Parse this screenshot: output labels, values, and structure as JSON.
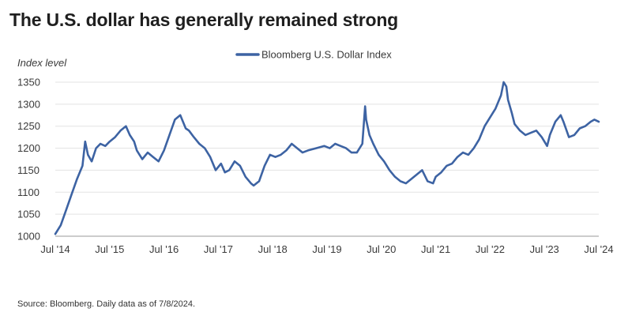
{
  "header": {
    "title": "The U.S. dollar has generally remained strong"
  },
  "footer": {
    "source": "Source: Bloomberg. Daily data as of 7/8/2024."
  },
  "colors": {
    "line": "#3d63a3",
    "grid": "#e3e3e3",
    "axis": "#9a9a9a"
  },
  "chart_data": {
    "type": "line",
    "title": "The U.S. dollar has generally remained strong",
    "ylabel": "Index level",
    "xlabel": "",
    "ylim": [
      1000,
      1350
    ],
    "xlim": [
      2014.5,
      2024.5
    ],
    "grid": true,
    "legend": {
      "position": "top-center",
      "entries": [
        "Bloomberg U.S. Dollar Index"
      ]
    },
    "yticks": [
      {
        "value": 1000,
        "label": "1000"
      },
      {
        "value": 1050,
        "label": "1050"
      },
      {
        "value": 1100,
        "label": "1100"
      },
      {
        "value": 1150,
        "label": "1150"
      },
      {
        "value": 1200,
        "label": "1200"
      },
      {
        "value": 1250,
        "label": "1250"
      },
      {
        "value": 1300,
        "label": "1300"
      },
      {
        "value": 1350,
        "label": "1350"
      }
    ],
    "xticks": [
      {
        "value": 2014.5,
        "label": "Jul '14"
      },
      {
        "value": 2015.5,
        "label": "Jul '15"
      },
      {
        "value": 2016.5,
        "label": "Jul '16"
      },
      {
        "value": 2017.5,
        "label": "Jul '17"
      },
      {
        "value": 2018.5,
        "label": "Jul '18"
      },
      {
        "value": 2019.5,
        "label": "Jul '19"
      },
      {
        "value": 2020.5,
        "label": "Jul '20"
      },
      {
        "value": 2021.5,
        "label": "Jul '21"
      },
      {
        "value": 2022.5,
        "label": "Jul '22"
      },
      {
        "value": 2023.5,
        "label": "Jul '23"
      },
      {
        "value": 2024.5,
        "label": "Jul '24"
      }
    ],
    "series": [
      {
        "name": "Bloomberg U.S. Dollar Index",
        "x": [
          2014.5,
          2014.6,
          2014.7,
          2014.8,
          2014.9,
          2015.0,
          2015.05,
          2015.1,
          2015.17,
          2015.25,
          2015.33,
          2015.42,
          2015.5,
          2015.6,
          2015.7,
          2015.8,
          2015.87,
          2015.95,
          2016.0,
          2016.1,
          2016.2,
          2016.3,
          2016.4,
          2016.5,
          2016.6,
          2016.7,
          2016.8,
          2016.9,
          2016.96,
          2017.05,
          2017.15,
          2017.25,
          2017.35,
          2017.45,
          2017.55,
          2017.62,
          2017.7,
          2017.8,
          2017.9,
          2018.0,
          2018.1,
          2018.15,
          2018.25,
          2018.35,
          2018.45,
          2018.55,
          2018.65,
          2018.75,
          2018.85,
          2018.95,
          2019.05,
          2019.15,
          2019.3,
          2019.45,
          2019.55,
          2019.65,
          2019.75,
          2019.85,
          2019.95,
          2020.05,
          2020.15,
          2020.2,
          2020.22,
          2020.28,
          2020.35,
          2020.45,
          2020.55,
          2020.65,
          2020.75,
          2020.85,
          2020.95,
          2021.05,
          2021.15,
          2021.25,
          2021.35,
          2021.45,
          2021.5,
          2021.6,
          2021.7,
          2021.8,
          2021.9,
          2022.0,
          2022.1,
          2022.2,
          2022.3,
          2022.4,
          2022.5,
          2022.6,
          2022.7,
          2022.75,
          2022.8,
          2022.83,
          2022.9,
          2022.95,
          2023.05,
          2023.15,
          2023.25,
          2023.35,
          2023.45,
          2023.55,
          2023.6,
          2023.7,
          2023.8,
          2023.85,
          2023.95,
          2024.05,
          2024.15,
          2024.25,
          2024.35,
          2024.42,
          2024.5
        ],
        "values": [
          1005,
          1025,
          1060,
          1095,
          1130,
          1160,
          1215,
          1185,
          1170,
          1200,
          1210,
          1205,
          1215,
          1225,
          1240,
          1250,
          1230,
          1215,
          1195,
          1175,
          1190,
          1180,
          1170,
          1195,
          1230,
          1265,
          1275,
          1245,
          1240,
          1225,
          1210,
          1200,
          1180,
          1150,
          1165,
          1145,
          1150,
          1170,
          1160,
          1135,
          1120,
          1115,
          1125,
          1160,
          1185,
          1180,
          1185,
          1195,
          1210,
          1200,
          1190,
          1195,
          1200,
          1205,
          1200,
          1210,
          1205,
          1200,
          1190,
          1190,
          1210,
          1295,
          1265,
          1230,
          1210,
          1185,
          1170,
          1150,
          1135,
          1125,
          1120,
          1130,
          1140,
          1150,
          1125,
          1120,
          1135,
          1145,
          1160,
          1165,
          1180,
          1190,
          1185,
          1200,
          1220,
          1250,
          1270,
          1290,
          1320,
          1350,
          1340,
          1310,
          1280,
          1255,
          1240,
          1230,
          1235,
          1240,
          1225,
          1205,
          1230,
          1260,
          1275,
          1260,
          1225,
          1230,
          1245,
          1250,
          1260,
          1265,
          1260
        ]
      }
    ]
  }
}
